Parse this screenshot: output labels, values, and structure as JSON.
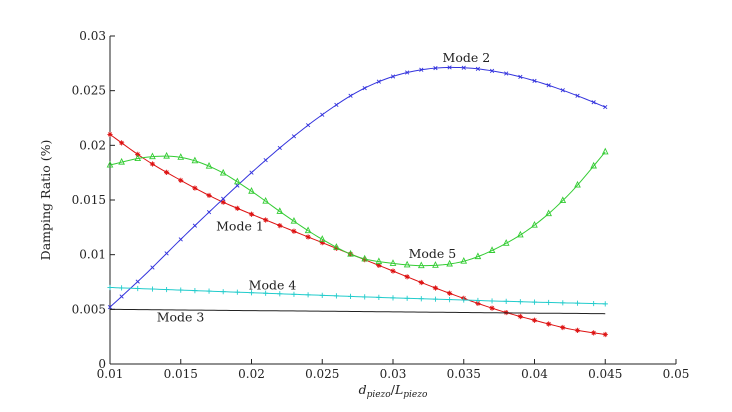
{
  "chart_data": {
    "type": "line",
    "title": "",
    "xlabel_parts": {
      "base": "d",
      "base_sub": "piezo",
      "sep": "/",
      "over": "L",
      "over_sub": "piezo"
    },
    "ylabel": "Damping Ratio (%)",
    "xlim": [
      0.01,
      0.05
    ],
    "ylim": [
      0,
      0.03
    ],
    "x_ticks": [
      "0.01",
      "0.015",
      "0.02",
      "0.025",
      "0.03",
      "0.035",
      "0.04",
      "0.045",
      "0.05"
    ],
    "y_ticks": [
      "0",
      "0.005",
      "0.01",
      "0.015",
      "0.02",
      "0.025",
      "0.03"
    ],
    "grid": false,
    "series": [
      {
        "name": "Mode 1",
        "color": "#dd1111",
        "marker": "star",
        "x": [
          0.01,
          0.0125,
          0.015,
          0.0175,
          0.02,
          0.0225,
          0.025,
          0.0275,
          0.03,
          0.0325,
          0.035,
          0.0375,
          0.04,
          0.0425,
          0.045
        ],
        "y": [
          0.021,
          0.0187,
          0.0168,
          0.0151,
          0.0137,
          0.0124,
          0.0111,
          0.0098,
          0.0085,
          0.0072,
          0.006,
          0.0049,
          0.004,
          0.0032,
          0.0027
        ]
      },
      {
        "name": "Mode 2",
        "color": "#3333dd",
        "marker": "cross",
        "x": [
          0.01,
          0.0125,
          0.015,
          0.0175,
          0.02,
          0.0225,
          0.025,
          0.0275,
          0.03,
          0.0325,
          0.035,
          0.0375,
          0.04,
          0.0425,
          0.045
        ],
        "y": [
          0.0052,
          0.0082,
          0.0114,
          0.0145,
          0.0175,
          0.0203,
          0.0228,
          0.0249,
          0.0263,
          0.027,
          0.0271,
          0.0267,
          0.0259,
          0.0248,
          0.0235
        ]
      },
      {
        "name": "Mode 3",
        "color": "#222222",
        "marker": "none",
        "x": [
          0.01,
          0.0125,
          0.015,
          0.0175,
          0.02,
          0.0225,
          0.025,
          0.0275,
          0.03,
          0.0325,
          0.035,
          0.0375,
          0.04,
          0.0425,
          0.045
        ],
        "y": [
          0.005,
          0.00497,
          0.00494,
          0.00491,
          0.00488,
          0.00486,
          0.00483,
          0.0048,
          0.00477,
          0.00474,
          0.00471,
          0.00468,
          0.00465,
          0.00463,
          0.0046
        ]
      },
      {
        "name": "Mode 4",
        "color": "#22cccc",
        "marker": "plus",
        "x": [
          0.01,
          0.0125,
          0.015,
          0.0175,
          0.02,
          0.0225,
          0.025,
          0.0275,
          0.03,
          0.0325,
          0.035,
          0.0375,
          0.04,
          0.0425,
          0.045
        ],
        "y": [
          0.007,
          0.00688,
          0.00676,
          0.00664,
          0.00652,
          0.0064,
          0.00628,
          0.00616,
          0.00605,
          0.00595,
          0.00585,
          0.00575,
          0.00566,
          0.00558,
          0.0055
        ]
      },
      {
        "name": "Mode 5",
        "color": "#33cc33",
        "marker": "triangle",
        "x": [
          0.01,
          0.0125,
          0.015,
          0.0175,
          0.02,
          0.0225,
          0.025,
          0.0275,
          0.03,
          0.0325,
          0.035,
          0.0375,
          0.04,
          0.0425,
          0.045
        ],
        "y": [
          0.0182,
          0.0189,
          0.0189,
          0.0178,
          0.0158,
          0.0135,
          0.0114,
          0.0098,
          0.0092,
          0.009,
          0.0094,
          0.0107,
          0.0127,
          0.0156,
          0.0194
        ]
      }
    ],
    "annotations": [
      {
        "text": "Mode 2",
        "x": 0.0335,
        "y": 0.0276
      },
      {
        "text": "Mode 1",
        "x": 0.0175,
        "y": 0.0122
      },
      {
        "text": "Mode 5",
        "x": 0.0311,
        "y": 0.0097
      },
      {
        "text": "Mode 4",
        "x": 0.0198,
        "y": 0.0068
      },
      {
        "text": "Mode 3",
        "x": 0.0133,
        "y": 0.0039
      }
    ]
  }
}
